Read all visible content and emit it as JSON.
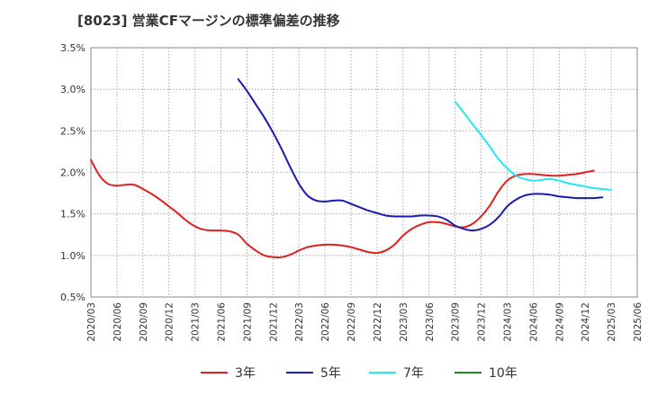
{
  "chart_data": {
    "type": "line",
    "title": "[8023]  営業CFマージンの標準偏差の推移",
    "xlabel": "",
    "ylabel": "",
    "ylim": [
      0.5,
      3.5
    ],
    "y_ticks": [
      "0.5%",
      "1.0%",
      "1.5%",
      "2.0%",
      "2.5%",
      "3.0%",
      "3.5%"
    ],
    "y_tick_values": [
      0.5,
      1.0,
      1.5,
      2.0,
      2.5,
      3.0,
      3.5
    ],
    "x_ticks": [
      "2020/03",
      "2020/06",
      "2020/09",
      "2020/12",
      "2021/03",
      "2021/06",
      "2021/09",
      "2021/12",
      "2022/03",
      "2022/06",
      "2022/09",
      "2022/12",
      "2023/03",
      "2023/06",
      "2023/09",
      "2023/12",
      "2024/03",
      "2024/06",
      "2024/09",
      "2024/12",
      "2025/03",
      "2025/06"
    ],
    "x_start": "2020/03",
    "grid": true,
    "legend_position": "bottom",
    "series": [
      {
        "name": "3年",
        "color": "#e02020",
        "start": "2020/03",
        "values": [
          2.15,
          1.96,
          1.86,
          1.84,
          1.85,
          1.85,
          1.8,
          1.74,
          1.67,
          1.59,
          1.51,
          1.42,
          1.35,
          1.31,
          1.3,
          1.3,
          1.29,
          1.25,
          1.14,
          1.06,
          1.0,
          0.98,
          0.98,
          1.01,
          1.06,
          1.1,
          1.12,
          1.13,
          1.13,
          1.12,
          1.1,
          1.07,
          1.04,
          1.03,
          1.06,
          1.13,
          1.24,
          1.32,
          1.37,
          1.4,
          1.4,
          1.38,
          1.35,
          1.34,
          1.38,
          1.47,
          1.6,
          1.77,
          1.9,
          1.96,
          1.98,
          1.98,
          1.97,
          1.96,
          1.96,
          1.97,
          1.98,
          2.0,
          2.02
        ]
      },
      {
        "name": "5年",
        "color": "#1a1ab4",
        "start": "2021/08",
        "values": [
          3.12,
          2.98,
          2.82,
          2.66,
          2.48,
          2.28,
          2.06,
          1.86,
          1.72,
          1.66,
          1.65,
          1.66,
          1.66,
          1.62,
          1.58,
          1.54,
          1.51,
          1.48,
          1.47,
          1.47,
          1.47,
          1.48,
          1.48,
          1.47,
          1.43,
          1.36,
          1.32,
          1.3,
          1.32,
          1.37,
          1.46,
          1.59,
          1.67,
          1.72,
          1.74,
          1.74,
          1.73,
          1.71,
          1.7,
          1.69,
          1.69,
          1.69,
          1.7
        ]
      },
      {
        "name": "7年",
        "color": "#22e8f0",
        "start": "2023/09",
        "values": [
          2.85,
          2.72,
          2.58,
          2.45,
          2.31,
          2.16,
          2.05,
          1.96,
          1.92,
          1.9,
          1.91,
          1.92,
          1.9,
          1.87,
          1.85,
          1.83,
          1.81,
          1.8,
          1.79
        ]
      },
      {
        "name": "10年",
        "color": "#228b22",
        "start": "2025/03",
        "values": []
      }
    ]
  }
}
